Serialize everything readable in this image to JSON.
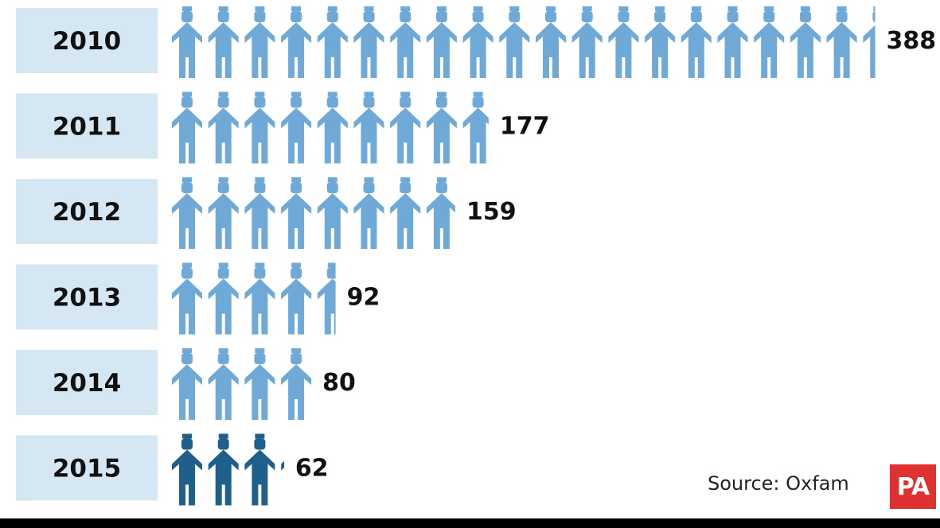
{
  "chart_data": {
    "type": "bar",
    "categories": [
      "2010",
      "2011",
      "2012",
      "2013",
      "2014",
      "2015"
    ],
    "values": [
      388,
      177,
      159,
      92,
      80,
      62
    ],
    "value_labels": [
      "388",
      "177",
      "159",
      "92",
      "80",
      "62"
    ],
    "title": "",
    "xlabel": "",
    "ylabel": "",
    "grid": false,
    "legend": "none"
  },
  "icon": "person-icon",
  "colors": {
    "label_band": "#d6e7f4",
    "figure": "#6fa9d8",
    "figure_highlight": "#1f5f8b",
    "text": "#111111",
    "logo_background": "#e03131",
    "footer_bar": "#000000"
  },
  "source_text": "Source: Oxfam",
  "logo_text": "PA"
}
